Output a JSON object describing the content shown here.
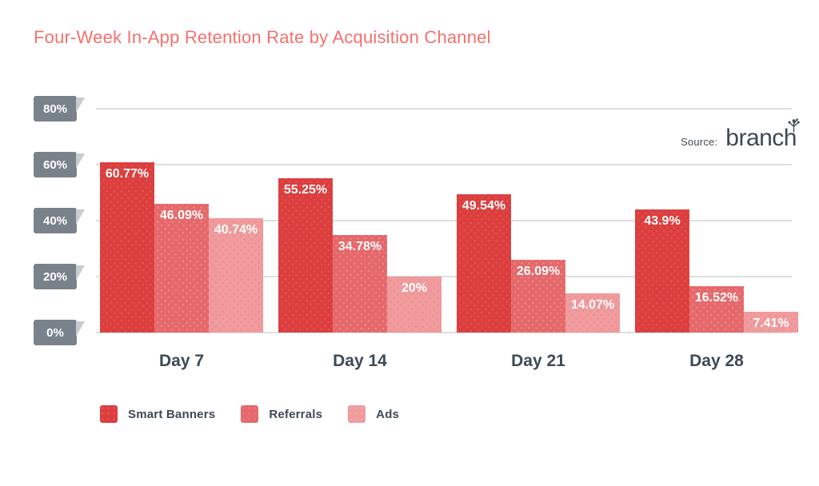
{
  "page": {
    "title": "Four-Week In-App Retention Rate by Acquisition Channel"
  },
  "source": {
    "label": "Source:",
    "brand": "branch"
  },
  "chart_data": {
    "type": "bar",
    "title": "Four-Week In-App Retention Rate by Acquisition Channel",
    "categories": [
      "Day 7",
      "Day 14",
      "Day 21",
      "Day 28"
    ],
    "series": [
      {
        "name": "Smart Banners",
        "color": "#DC3E3E",
        "values": [
          60.77,
          55.25,
          49.54,
          43.9
        ],
        "value_labels": [
          "60.77%",
          "55.25%",
          "49.54%",
          "43.9%"
        ]
      },
      {
        "name": "Referrals",
        "color": "#E5696B",
        "values": [
          46.09,
          34.78,
          26.09,
          16.52
        ],
        "value_labels": [
          "46.09%",
          "34.78%",
          "26.09%",
          "16.52%"
        ]
      },
      {
        "name": "Ads",
        "color": "#F09B9D",
        "values": [
          40.74,
          20,
          14.07,
          7.41
        ],
        "value_labels": [
          "40.74%",
          "20%",
          "14.07%",
          "7.41%"
        ]
      }
    ],
    "xlabel": "",
    "ylabel": "",
    "ylim": [
      0,
      80
    ],
    "y_ticks": [
      {
        "label": "80%",
        "value": 80
      },
      {
        "label": "60%",
        "value": 60
      },
      {
        "label": "40%",
        "value": 40
      },
      {
        "label": "20%",
        "value": 20
      },
      {
        "label": "0%",
        "value": 0
      }
    ],
    "grid": true,
    "legend_position": "bottom",
    "value_label_color": "#FFFFFF"
  },
  "colors": {
    "title": "#F4716C",
    "axis_text": "#3D4A57",
    "tick_box_bg": "#79828B",
    "tick_box_fold": "#C7CCD1",
    "tick_box_text": "#FFFFFF",
    "gridline": "#DEDEDE",
    "background": "#FFFFFF"
  }
}
